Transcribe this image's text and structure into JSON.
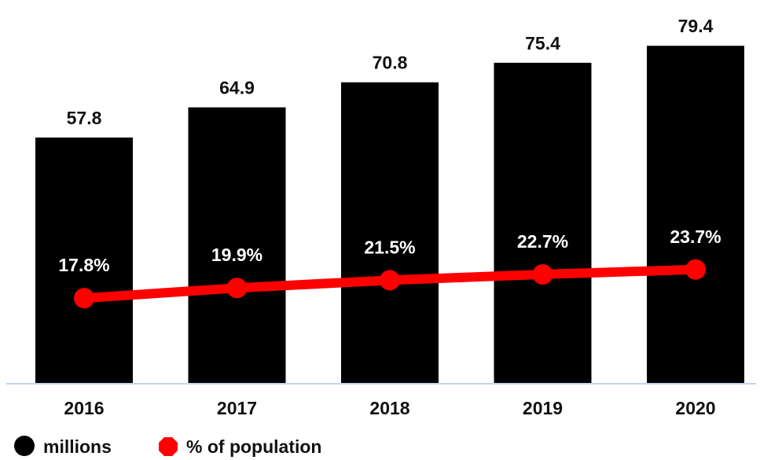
{
  "chart_data": {
    "type": "bar",
    "categories": [
      "2016",
      "2017",
      "2018",
      "2019",
      "2020"
    ],
    "series": [
      {
        "name": "millions",
        "type": "bar",
        "values": [
          57.8,
          64.9,
          70.8,
          75.4,
          79.4
        ],
        "labels": [
          "57.8",
          "64.9",
          "70.8",
          "75.4",
          "79.4"
        ],
        "color": "#000000"
      },
      {
        "name": "% of population",
        "type": "line",
        "values": [
          17.8,
          19.9,
          21.5,
          22.7,
          23.7
        ],
        "labels": [
          "17.8%",
          "19.9%",
          "21.5%",
          "22.7%",
          "23.7%"
        ],
        "color": "#ff0000"
      }
    ],
    "legend": {
      "placement": "bottom-left",
      "items": [
        {
          "label": "millions",
          "marker": "circle",
          "color": "#000000"
        },
        {
          "label": "% of population",
          "marker": "octagon",
          "color": "#ff0000"
        }
      ]
    },
    "grid": false,
    "axis_line_color": "#aec7e8"
  }
}
